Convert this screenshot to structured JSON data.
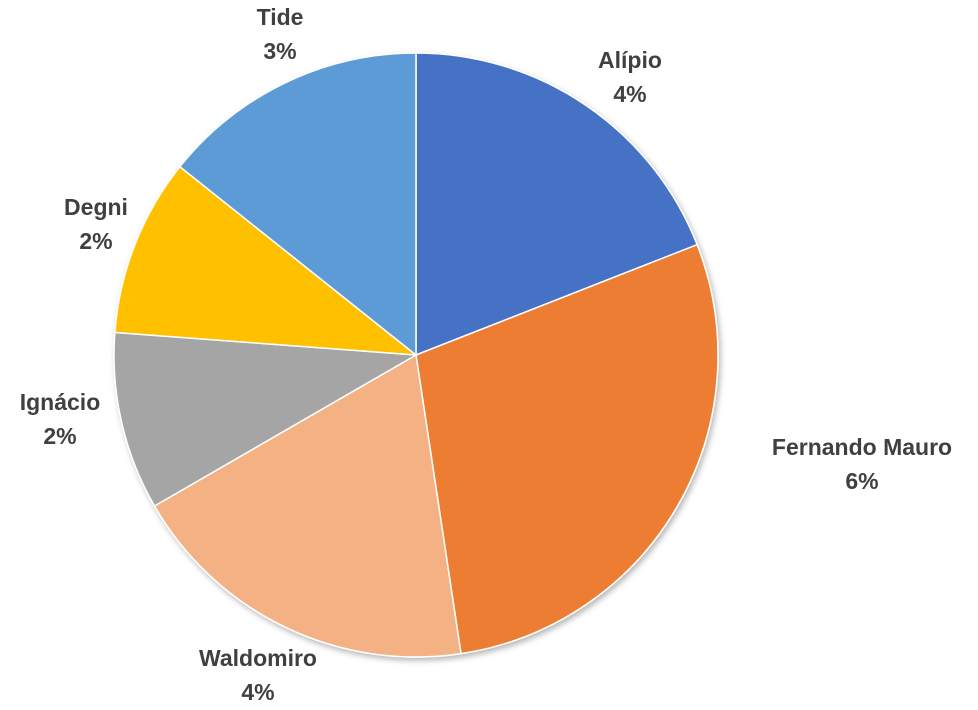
{
  "chart_data": {
    "type": "pie",
    "title": "",
    "start_angle_deg": 0,
    "direction": "clockwise",
    "legend": "none",
    "slices": [
      {
        "label": "Alípio",
        "value": 4,
        "display": "4%",
        "color": "#4472C4"
      },
      {
        "label": "Fernando Mauro",
        "value": 6,
        "display": "6%",
        "color": "#ED7D31"
      },
      {
        "label": "Waldomiro",
        "value": 4,
        "display": "4%",
        "color": "#F4B183"
      },
      {
        "label": "Ignácio",
        "value": 2,
        "display": "2%",
        "color": "#A5A5A5"
      },
      {
        "label": "Degni",
        "value": 2,
        "display": "2%",
        "color": "#FFC000"
      },
      {
        "label": "Tide",
        "value": 3,
        "display": "3%",
        "color": "#5B9BD5"
      }
    ]
  }
}
